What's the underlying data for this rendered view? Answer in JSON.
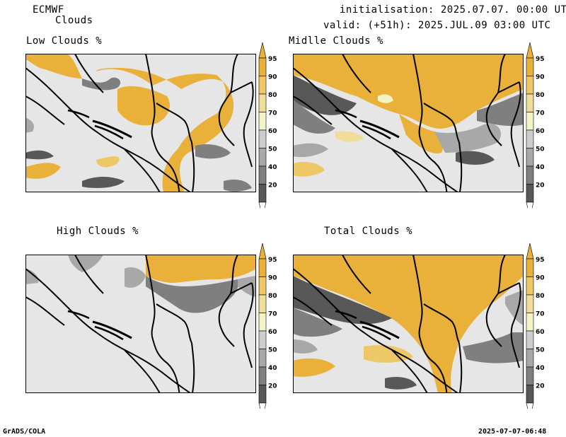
{
  "header": {
    "model": "ECMWF",
    "product": "Clouds",
    "init_line": "initialisation: 2025.07.07. 00:00 UTC",
    "valid_line": "valid: (+51h): 2025.JUL.09 03:00 UTC"
  },
  "panels": {
    "low": {
      "title": "Low Clouds %"
    },
    "middle": {
      "title": "Midlle Clouds %"
    },
    "high": {
      "title": "High Clouds %"
    },
    "total": {
      "title": "Total Clouds %"
    }
  },
  "colorbar": {
    "levels": [
      "95",
      "90",
      "80",
      "70",
      "60",
      "50",
      "40",
      "20"
    ],
    "colors": [
      "#e9b03a",
      "#eec767",
      "#f2dc9a",
      "#f3f3c6",
      "#cdcdcd",
      "#a8a8a8",
      "#7f7f7f",
      "#585858"
    ]
  },
  "footer": {
    "left": "GrADS/COLA",
    "right": "2025-07-07-06:48"
  }
}
